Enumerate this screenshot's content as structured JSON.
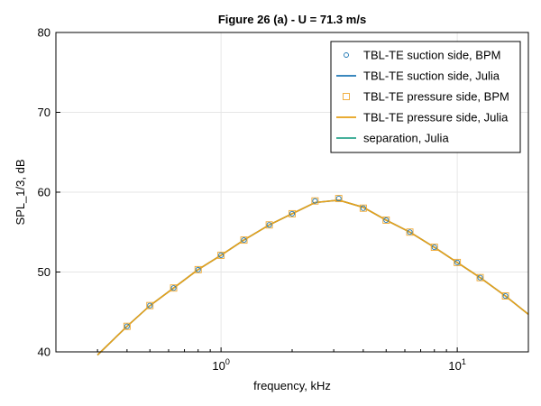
{
  "chart_data": {
    "type": "line",
    "title": "Figure 26 (a) - U = 71.3 m/s",
    "xlabel": "frequency, kHz",
    "ylabel": "SPL_1/3, dB",
    "xscale": "log",
    "xlim": [
      0.2,
      20
    ],
    "ylim": [
      40,
      80
    ],
    "yticks": [
      40,
      50,
      60,
      70,
      80
    ],
    "xticks": [
      {
        "base": "10",
        "exp": "0",
        "value": 1
      },
      {
        "base": "10",
        "exp": "1",
        "value": 10
      }
    ],
    "grid": true,
    "legend_position": "top-right",
    "series": [
      {
        "name": "TBL-TE suction side, BPM",
        "style": "marker",
        "marker": "circle",
        "color": "#1f77b4",
        "x": [
          0.4,
          0.5,
          0.63,
          0.8,
          1.0,
          1.25,
          1.6,
          2.0,
          2.5,
          3.15,
          4.0,
          5.0,
          6.3,
          8.0,
          10.0,
          12.5,
          16.0
        ],
        "y": [
          43.2,
          45.8,
          48.0,
          50.3,
          52.1,
          54.0,
          55.9,
          57.3,
          58.9,
          59.2,
          58.0,
          56.5,
          55.0,
          53.1,
          51.2,
          49.3,
          47.0
        ]
      },
      {
        "name": "TBL-TE suction side, Julia",
        "style": "line",
        "color": "#1f77b4",
        "x": [
          0.3,
          0.4,
          0.5,
          0.63,
          0.8,
          1.0,
          1.25,
          1.6,
          2.0,
          2.5,
          3.15,
          4.0,
          5.0,
          6.3,
          8.0,
          10.0,
          12.5,
          16.0,
          20.0
        ],
        "y": [
          39.6,
          43.2,
          45.8,
          48.0,
          50.3,
          52.1,
          54.0,
          55.9,
          57.3,
          58.7,
          59.0,
          58.1,
          56.5,
          55.0,
          53.1,
          51.2,
          49.3,
          47.0,
          44.7
        ]
      },
      {
        "name": "TBL-TE pressure side, BPM",
        "style": "marker",
        "marker": "square",
        "color": "#f0a830",
        "x": [
          0.4,
          0.5,
          0.63,
          0.8,
          1.0,
          1.25,
          1.6,
          2.0,
          2.5,
          3.15,
          4.0,
          5.0,
          6.3,
          8.0,
          10.0,
          12.5,
          16.0
        ],
        "y": [
          43.2,
          45.8,
          48.0,
          50.3,
          52.1,
          54.0,
          55.9,
          57.3,
          58.9,
          59.2,
          58.0,
          56.5,
          55.0,
          53.1,
          51.2,
          49.3,
          47.0
        ]
      },
      {
        "name": "TBL-TE pressure side, Julia",
        "style": "line",
        "color": "#e6a117",
        "x": [
          0.3,
          0.4,
          0.5,
          0.63,
          0.8,
          1.0,
          1.25,
          1.6,
          2.0,
          2.5,
          3.15,
          4.0,
          5.0,
          6.3,
          8.0,
          10.0,
          12.5,
          16.0,
          20.0
        ],
        "y": [
          39.6,
          43.2,
          45.8,
          48.0,
          50.3,
          52.1,
          54.0,
          55.9,
          57.3,
          58.7,
          59.0,
          58.1,
          56.5,
          55.0,
          53.1,
          51.2,
          49.3,
          47.0,
          44.7
        ]
      },
      {
        "name": "separation, Julia",
        "style": "line",
        "color": "#2ca58d",
        "x": [],
        "y": []
      }
    ]
  }
}
